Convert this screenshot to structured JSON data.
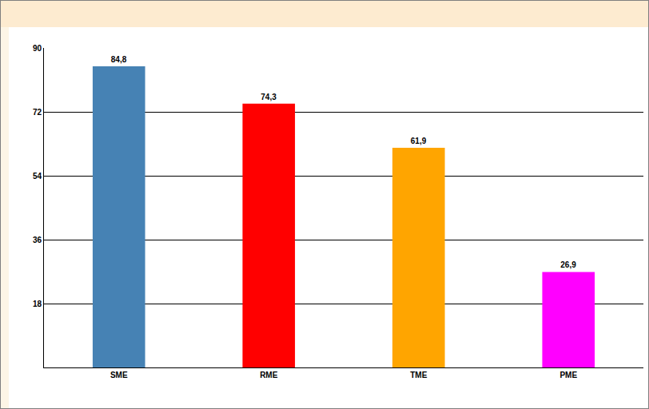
{
  "chart_data": {
    "type": "bar",
    "categories": [
      "SME",
      "RME",
      "TME",
      "PME"
    ],
    "values": [
      84.8,
      74.3,
      61.9,
      26.9
    ],
    "value_labels": [
      "84,8",
      "74,3",
      "61,9",
      "26,9"
    ],
    "colors": [
      "#4682b4",
      "#ff0000",
      "#ffa500",
      "#ff00ff"
    ],
    "ylim": [
      0,
      90
    ],
    "yticks": [
      18,
      36,
      54,
      72,
      90
    ],
    "grid": true,
    "data_labels": true
  }
}
